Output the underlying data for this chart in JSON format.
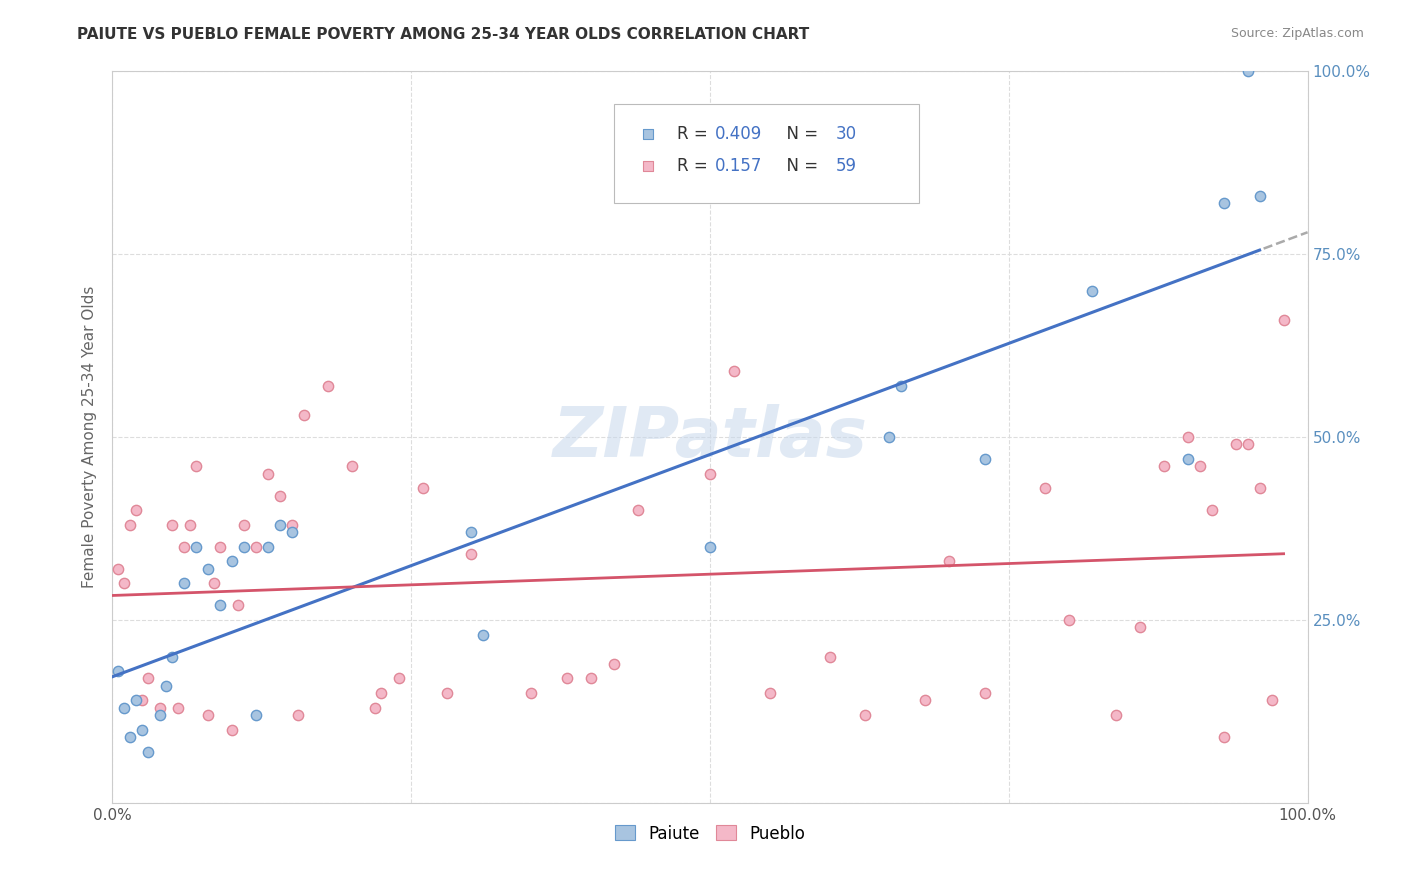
{
  "title": "PAIUTE VS PUEBLO FEMALE POVERTY AMONG 25-34 YEAR OLDS CORRELATION CHART",
  "source": "Source: ZipAtlas.com",
  "ylabel": "Female Poverty Among 25-34 Year Olds",
  "xlim": [
    0,
    1.0
  ],
  "ylim": [
    0,
    1.0
  ],
  "paiute_color": "#a8c4e0",
  "pueblo_color": "#f4b8c8",
  "paiute_edge": "#6699cc",
  "pueblo_edge": "#e08898",
  "trend_paiute_color": "#4472c4",
  "trend_pueblo_color": "#d4546a",
  "R_paiute": 0.409,
  "N_paiute": 30,
  "R_pueblo": 0.157,
  "N_pueblo": 59,
  "watermark": "ZIPatlas",
  "background_color": "#ffffff",
  "grid_color": "#dddddd",
  "paiute_x": [
    0.005,
    0.01,
    0.015,
    0.02,
    0.025,
    0.03,
    0.04,
    0.045,
    0.05,
    0.06,
    0.07,
    0.08,
    0.09,
    0.1,
    0.11,
    0.12,
    0.13,
    0.14,
    0.15,
    0.3,
    0.31,
    0.5,
    0.65,
    0.66,
    0.73,
    0.82,
    0.9,
    0.93,
    0.95,
    0.96
  ],
  "paiute_y": [
    0.18,
    0.13,
    0.09,
    0.14,
    0.1,
    0.07,
    0.12,
    0.16,
    0.2,
    0.3,
    0.35,
    0.32,
    0.27,
    0.33,
    0.35,
    0.12,
    0.35,
    0.38,
    0.37,
    0.37,
    0.23,
    0.35,
    0.5,
    0.57,
    0.47,
    0.7,
    0.47,
    0.82,
    1.0,
    0.83
  ],
  "pueblo_x": [
    0.005,
    0.01,
    0.015,
    0.02,
    0.025,
    0.03,
    0.04,
    0.05,
    0.055,
    0.06,
    0.065,
    0.07,
    0.08,
    0.085,
    0.09,
    0.1,
    0.105,
    0.11,
    0.12,
    0.13,
    0.14,
    0.15,
    0.155,
    0.16,
    0.18,
    0.2,
    0.22,
    0.225,
    0.24,
    0.26,
    0.28,
    0.3,
    0.35,
    0.38,
    0.4,
    0.42,
    0.44,
    0.5,
    0.52,
    0.55,
    0.6,
    0.63,
    0.68,
    0.7,
    0.73,
    0.78,
    0.8,
    0.84,
    0.86,
    0.88,
    0.9,
    0.91,
    0.92,
    0.93,
    0.94,
    0.95,
    0.96,
    0.97,
    0.98
  ],
  "pueblo_y": [
    0.32,
    0.3,
    0.38,
    0.4,
    0.14,
    0.17,
    0.13,
    0.38,
    0.13,
    0.35,
    0.38,
    0.46,
    0.12,
    0.3,
    0.35,
    0.1,
    0.27,
    0.38,
    0.35,
    0.45,
    0.42,
    0.38,
    0.12,
    0.53,
    0.57,
    0.46,
    0.13,
    0.15,
    0.17,
    0.43,
    0.15,
    0.34,
    0.15,
    0.17,
    0.17,
    0.19,
    0.4,
    0.45,
    0.59,
    0.15,
    0.2,
    0.12,
    0.14,
    0.33,
    0.15,
    0.43,
    0.25,
    0.12,
    0.24,
    0.46,
    0.5,
    0.46,
    0.4,
    0.09,
    0.49,
    0.49,
    0.43,
    0.14,
    0.66
  ],
  "marker_size": 55
}
